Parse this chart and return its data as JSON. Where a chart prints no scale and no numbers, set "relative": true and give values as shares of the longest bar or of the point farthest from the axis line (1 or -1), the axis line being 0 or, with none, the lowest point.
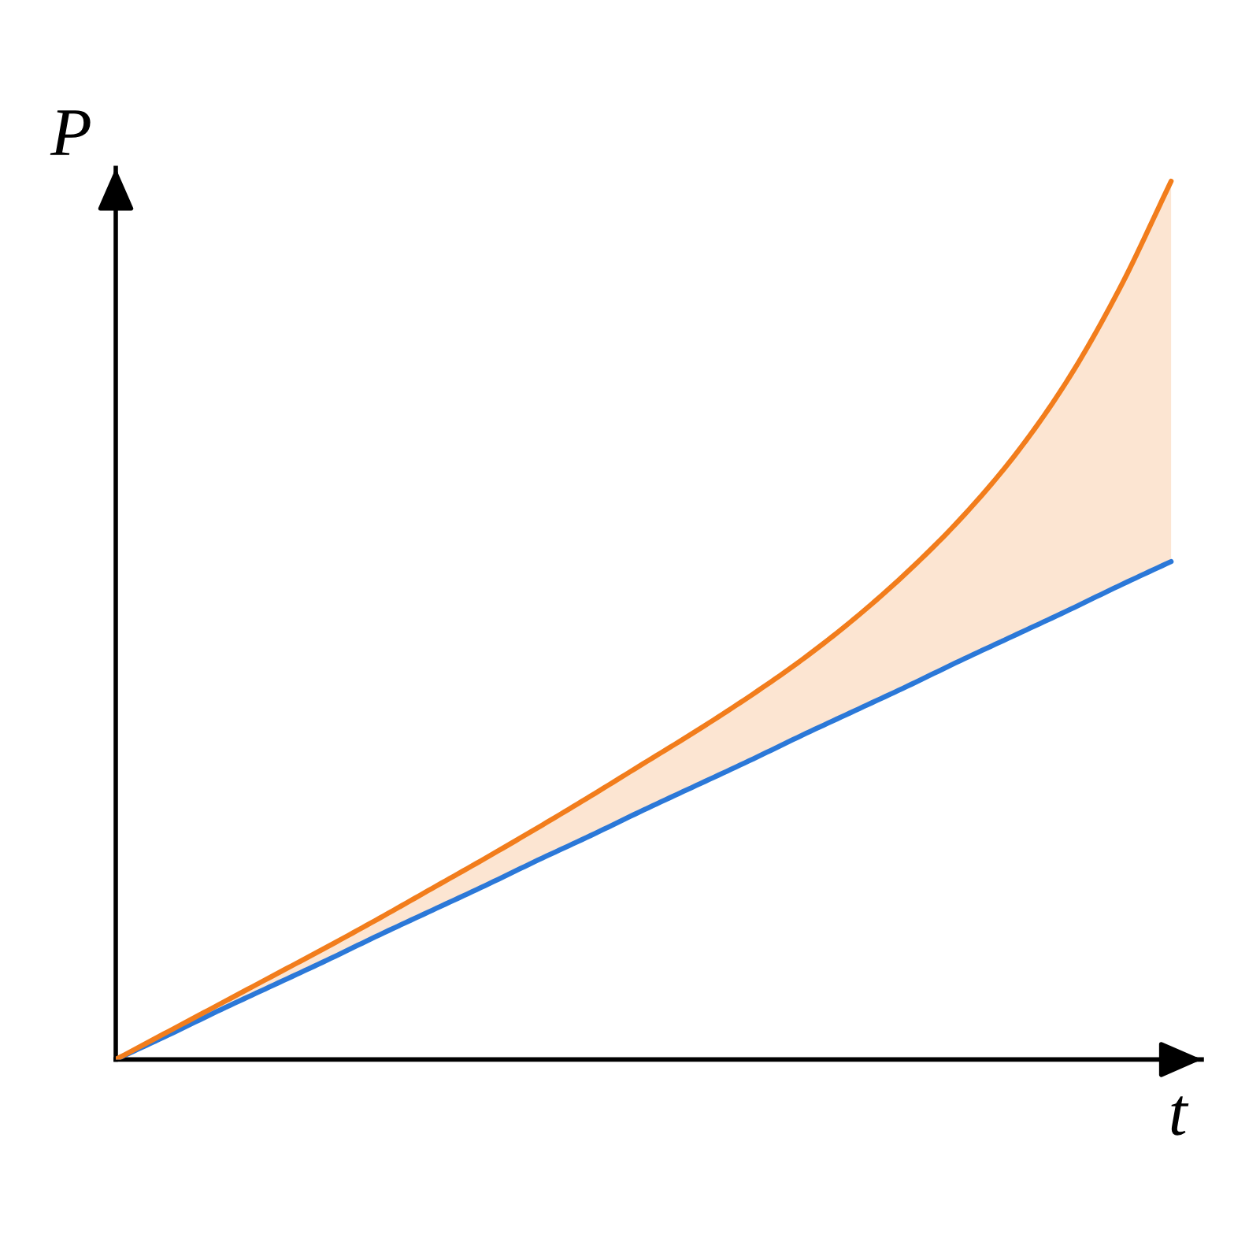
{
  "chart_data": {
    "type": "line",
    "relative": true,
    "xlabel": "t",
    "ylabel": "P",
    "categories": [
      null,
      null,
      null,
      null,
      null,
      null,
      null,
      null,
      null,
      null,
      null,
      null,
      null,
      null,
      null,
      null,
      null,
      null,
      null,
      null,
      null
    ],
    "series": [
      {
        "color": "#2b78d8",
        "values": [
          0,
          0.028,
          0.057,
          0.085,
          0.113,
          0.142,
          0.17,
          0.198,
          0.227,
          0.255,
          0.284,
          0.312,
          0.34,
          0.369,
          0.397,
          0.425,
          0.454,
          0.482,
          0.51,
          0.539,
          0.567
        ]
      },
      {
        "color": "#f27d1c",
        "values": [
          0,
          0.032,
          0.064,
          0.096,
          0.128,
          0.161,
          0.195,
          0.229,
          0.264,
          0.3,
          0.337,
          0.374,
          0.413,
          0.455,
          0.502,
          0.555,
          0.615,
          0.685,
          0.77,
          0.875,
          1.0
        ],
        "lower": [
          0,
          0.028,
          0.057,
          0.085,
          0.113,
          0.142,
          0.17,
          0.198,
          0.227,
          0.255,
          0.284,
          0.312,
          0.34,
          0.369,
          0.397,
          0.425,
          0.454,
          0.482,
          0.51,
          0.539,
          0.567
        ],
        "upper": [
          0,
          0.032,
          0.064,
          0.096,
          0.128,
          0.161,
          0.195,
          0.229,
          0.264,
          0.3,
          0.337,
          0.374,
          0.413,
          0.455,
          0.502,
          0.555,
          0.615,
          0.685,
          0.77,
          0.875,
          1.0
        ]
      }
    ]
  }
}
